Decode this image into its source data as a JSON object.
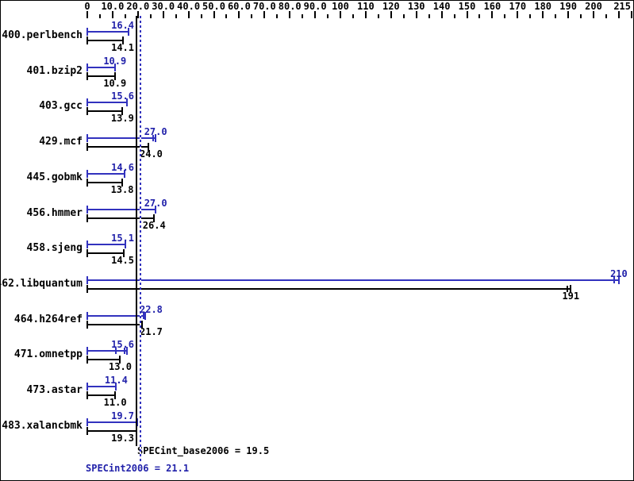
{
  "colors": {
    "peak_blue": "#3232be",
    "text_blue": "#2222aa",
    "base_black": "#000000",
    "background": "#ffffff"
  },
  "footer": {
    "base_caption": "SPECint_base2006 = 19.5",
    "peak_caption": "SPECint2006 = 21.1"
  },
  "chart_data": {
    "type": "bar",
    "orientation": "horizontal",
    "title": "",
    "xlabel": "",
    "ylabel": "",
    "xlim": [
      0,
      215
    ],
    "grid": false,
    "legend_position": "none",
    "x_major_ticks": [
      {
        "v": 0,
        "label": "0"
      },
      {
        "v": 10,
        "label": "10.0"
      },
      {
        "v": 20,
        "label": "20.0"
      },
      {
        "v": 30,
        "label": "30.0"
      },
      {
        "v": 40,
        "label": "40.0"
      },
      {
        "v": 50,
        "label": "50.0"
      },
      {
        "v": 60,
        "label": "60.0"
      },
      {
        "v": 70,
        "label": "70.0"
      },
      {
        "v": 80,
        "label": "80.0"
      },
      {
        "v": 90,
        "label": "90.0"
      },
      {
        "v": 100,
        "label": "100"
      },
      {
        "v": 110,
        "label": "110"
      },
      {
        "v": 120,
        "label": "120"
      },
      {
        "v": 130,
        "label": "130"
      },
      {
        "v": 140,
        "label": "140"
      },
      {
        "v": 150,
        "label": "150"
      },
      {
        "v": 160,
        "label": "160"
      },
      {
        "v": 170,
        "label": "170"
      },
      {
        "v": 180,
        "label": "180"
      },
      {
        "v": 190,
        "label": "190"
      },
      {
        "v": 200,
        "label": "200"
      },
      {
        "v": 210,
        "label": ""
      },
      {
        "v": 215,
        "label": "215"
      }
    ],
    "x_minor_ticks": [
      5,
      15,
      25,
      35,
      45,
      55,
      65,
      75,
      85,
      95,
      105,
      115,
      125,
      135,
      145,
      155,
      165,
      175,
      185,
      195,
      205
    ],
    "categories": [
      "400.perlbench",
      "401.bzip2",
      "403.gcc",
      "429.mcf",
      "445.gobmk",
      "456.hmmer",
      "458.sjeng",
      "462.libquantum",
      "464.h264ref",
      "471.omnetpp",
      "473.astar",
      "483.xalancbmk"
    ],
    "series": [
      {
        "name": "peak (SPECint2006)",
        "color": "#3232be",
        "values": [
          16.4,
          10.9,
          15.6,
          27,
          14.6,
          27,
          15.1,
          210,
          22.8,
          15.6,
          11.4,
          19.7
        ],
        "labels": [
          "16.4",
          "10.9",
          "15.6",
          "27.0",
          "14.6",
          "27.0",
          "15.1",
          "210",
          "22.8",
          "15.6",
          "11.4",
          "19.7"
        ],
        "run_ticks": [
          [],
          [],
          [],
          [
            26.1
          ],
          [],
          [],
          [],
          [
            208
          ],
          [
            22.3
          ],
          [
            11.3,
            14.8
          ],
          [],
          []
        ]
      },
      {
        "name": "base (SPECint_base2006)",
        "color": "#000000",
        "values": [
          14.1,
          10.9,
          13.9,
          24,
          13.8,
          26.4,
          14.5,
          191,
          21.7,
          13,
          11,
          19.3
        ],
        "labels": [
          "14.1",
          "10.9",
          "13.9",
          "24.0",
          "13.8",
          "26.4",
          "14.5",
          "191",
          "21.7",
          "13.0",
          "11.0",
          "19.3"
        ],
        "run_ticks": [
          [],
          [],
          [],
          [],
          [],
          [],
          [],
          [
            189.8
          ],
          [],
          [],
          [],
          []
        ]
      }
    ],
    "reference_lines": [
      {
        "name": "SPECint_base2006",
        "value": 19.5,
        "style": "solid",
        "color": "#000000",
        "label": "SPECint_base2006 = 19.5"
      },
      {
        "name": "SPECint2006",
        "value": 21.1,
        "style": "dotted",
        "color": "#3232be",
        "label": "SPECint2006 = 21.1"
      }
    ]
  }
}
